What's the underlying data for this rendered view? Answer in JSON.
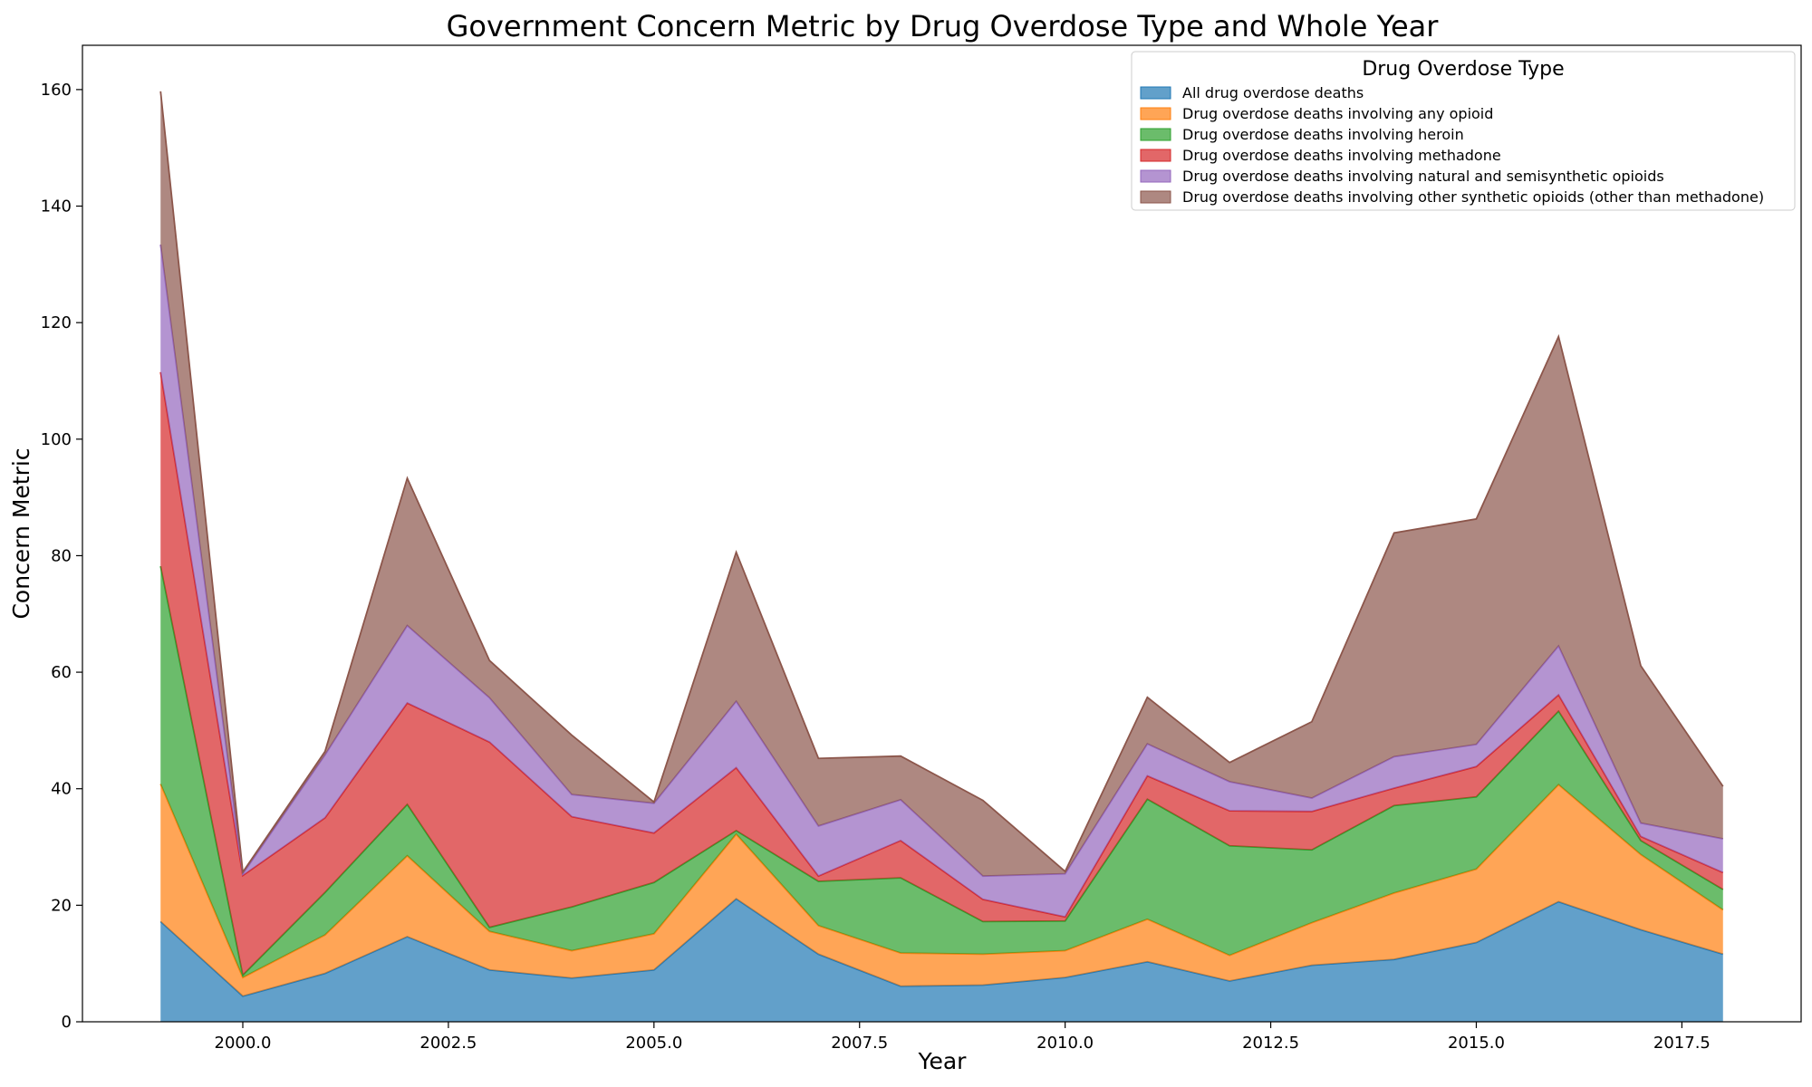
{
  "chart_data": {
    "type": "area",
    "stacked": true,
    "title": "Government Concern Metric by Drug Overdose Type and Whole Year",
    "xlabel": "Year",
    "ylabel": "Concern Metric",
    "xlim": [
      1998.05,
      2018.95
    ],
    "ylim": [
      0,
      167.6
    ],
    "x_ticks": [
      2000.0,
      2002.5,
      2005.0,
      2007.5,
      2010.0,
      2012.5,
      2015.0,
      2017.5
    ],
    "x_tick_labels": [
      "2000.0",
      "2002.5",
      "2005.0",
      "2007.5",
      "2010.0",
      "2012.5",
      "2015.0",
      "2017.5"
    ],
    "y_ticks": [
      0,
      20,
      40,
      60,
      80,
      100,
      120,
      140,
      160
    ],
    "y_tick_labels": [
      "0",
      "20",
      "40",
      "60",
      "80",
      "100",
      "120",
      "140",
      "160"
    ],
    "grid": false,
    "legend": {
      "title": "Drug Overdose Type",
      "position": "top-right"
    },
    "x": [
      1999,
      2000,
      2001,
      2002,
      2003,
      2004,
      2005,
      2006,
      2007,
      2008,
      2009,
      2010,
      2011,
      2012,
      2013,
      2014,
      2015,
      2016,
      2017,
      2018
    ],
    "series": [
      {
        "name": "All drug overdose deaths",
        "color": "#1f77b4",
        "values": [
          17.2,
          4.4,
          8.3,
          14.6,
          8.9,
          7.5,
          8.9,
          21.1,
          11.6,
          6.1,
          6.3,
          7.6,
          10.3,
          7.0,
          9.7,
          10.7,
          13.6,
          20.6,
          15.8,
          11.6
        ]
      },
      {
        "name": "Drug overdose deaths involving any opioid",
        "color": "#ff7f0e",
        "values": [
          23.6,
          3.2,
          6.6,
          13.9,
          6.6,
          4.7,
          6.2,
          11.1,
          4.9,
          5.7,
          5.3,
          4.6,
          7.3,
          4.4,
          7.3,
          11.4,
          12.6,
          20.1,
          12.9,
          7.6
        ]
      },
      {
        "name": "Drug overdose deaths involving heroin",
        "color": "#2ca02c",
        "values": [
          37.4,
          0.4,
          7.3,
          8.8,
          0.7,
          7.5,
          8.8,
          0.6,
          7.6,
          12.9,
          5.6,
          5.1,
          20.6,
          18.8,
          12.5,
          15.0,
          12.4,
          12.6,
          2.4,
          3.5
        ]
      },
      {
        "name": "Drug overdose deaths involving methadone",
        "color": "#d62728",
        "values": [
          33.3,
          17.1,
          12.8,
          17.4,
          31.8,
          15.5,
          8.5,
          10.8,
          0.9,
          6.4,
          3.8,
          0.7,
          4.0,
          6.0,
          6.6,
          3.0,
          5.2,
          2.8,
          0.7,
          2.9
        ]
      },
      {
        "name": "Drug overdose deaths involving natural and semisynthetic opioids",
        "color": "#9467bd",
        "values": [
          21.9,
          0.3,
          10.8,
          13.3,
          7.6,
          3.8,
          5.1,
          11.4,
          8.6,
          7.0,
          4.0,
          7.4,
          5.5,
          5.0,
          2.3,
          5.4,
          3.8,
          8.4,
          2.3,
          5.8
        ]
      },
      {
        "name": "Drug overdose deaths involving other synthetic opioids (other than methadone)",
        "color": "#8c564b",
        "values": [
          26.3,
          0.3,
          0.6,
          25.3,
          6.4,
          10.2,
          0.2,
          25.6,
          11.6,
          7.5,
          13.0,
          0.4,
          8.0,
          3.3,
          13.1,
          38.4,
          38.7,
          53.1,
          27.0,
          9.0
        ]
      }
    ]
  }
}
